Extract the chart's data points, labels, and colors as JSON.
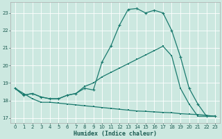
{
  "xlabel": "Humidex (Indice chaleur)",
  "background_color": "#cce8e0",
  "grid_color": "#ffffff",
  "line_color": "#1a7a6e",
  "xlim": [
    -0.5,
    23.5
  ],
  "ylim": [
    16.7,
    23.6
  ],
  "yticks": [
    17,
    18,
    19,
    20,
    21,
    22,
    23
  ],
  "xticks": [
    0,
    1,
    2,
    3,
    4,
    5,
    6,
    7,
    8,
    9,
    10,
    11,
    12,
    13,
    14,
    15,
    16,
    17,
    18,
    19,
    20,
    21,
    22,
    23
  ],
  "series1_x": [
    0,
    1,
    2,
    3,
    4,
    5,
    6,
    7,
    8,
    9,
    10,
    11,
    12,
    13,
    14,
    15,
    16,
    17,
    18,
    19,
    20,
    21,
    22,
    23
  ],
  "series1_y": [
    18.7,
    18.3,
    18.4,
    18.2,
    18.1,
    18.1,
    18.3,
    18.4,
    18.7,
    18.6,
    20.2,
    21.1,
    22.3,
    23.2,
    23.25,
    23.0,
    23.15,
    23.0,
    22.0,
    20.5,
    18.7,
    17.8,
    17.1,
    17.1
  ],
  "series2_x": [
    0,
    1,
    2,
    3,
    4,
    5,
    6,
    7,
    8,
    9,
    10,
    11,
    12,
    13,
    14,
    15,
    16,
    17,
    18,
    19,
    20,
    21,
    22,
    23
  ],
  "series2_y": [
    18.7,
    18.3,
    18.4,
    18.2,
    18.1,
    18.1,
    18.3,
    18.4,
    18.8,
    19.0,
    19.35,
    19.6,
    19.85,
    20.1,
    20.35,
    20.6,
    20.85,
    21.1,
    20.55,
    18.7,
    17.8,
    17.1,
    17.1,
    17.1
  ],
  "series3_x": [
    0,
    1,
    2,
    3,
    4,
    5,
    6,
    7,
    8,
    9,
    10,
    11,
    12,
    13,
    14,
    15,
    16,
    17,
    18,
    19,
    20,
    21,
    22,
    23
  ],
  "series3_y": [
    18.7,
    18.4,
    18.1,
    17.9,
    17.9,
    17.85,
    17.8,
    17.75,
    17.7,
    17.65,
    17.6,
    17.55,
    17.5,
    17.45,
    17.4,
    17.38,
    17.35,
    17.32,
    17.3,
    17.25,
    17.22,
    17.2,
    17.15,
    17.1
  ]
}
